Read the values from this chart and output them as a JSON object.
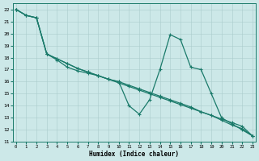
{
  "xlabel": "Humidex (Indice chaleur)",
  "bg_color": "#cce8e8",
  "grid_color": "#aacccc",
  "line_color": "#1a7a6a",
  "xlim": [
    -0.3,
    23.3
  ],
  "ylim": [
    11,
    22.5
  ],
  "yticks": [
    11,
    12,
    13,
    14,
    15,
    16,
    17,
    18,
    19,
    20,
    21,
    22
  ],
  "xticks": [
    0,
    1,
    2,
    3,
    4,
    5,
    6,
    7,
    8,
    9,
    10,
    11,
    12,
    13,
    14,
    15,
    16,
    17,
    18,
    19,
    20,
    21,
    22,
    23
  ],
  "line1_x": [
    0,
    1,
    2,
    3,
    4,
    5,
    6,
    7,
    8,
    9,
    10,
    11,
    12,
    13,
    14,
    15,
    16,
    17,
    18,
    19,
    20,
    21,
    22,
    23
  ],
  "line1_y": [
    22.0,
    21.5,
    21.3,
    18.3,
    17.9,
    17.5,
    17.1,
    16.8,
    16.5,
    16.2,
    15.9,
    15.6,
    15.3,
    15.0,
    14.7,
    14.4,
    14.1,
    13.8,
    13.5,
    13.2,
    12.9,
    12.6,
    12.3,
    11.5
  ],
  "line2_x": [
    0,
    1,
    2,
    3,
    4,
    5,
    6,
    7,
    8,
    9,
    10,
    11,
    12,
    13,
    14,
    15,
    16,
    17,
    18,
    19,
    20,
    21,
    22,
    23
  ],
  "line2_y": [
    22.0,
    21.5,
    21.3,
    18.3,
    17.9,
    17.5,
    17.1,
    16.8,
    16.5,
    16.2,
    16.0,
    15.7,
    15.4,
    15.1,
    14.8,
    14.5,
    14.2,
    13.9,
    13.5,
    13.2,
    12.8,
    12.4,
    12.1,
    11.5
  ],
  "line3_x": [
    0,
    1,
    2,
    3,
    4,
    5,
    6,
    7,
    8,
    9,
    10,
    11,
    12,
    13,
    14,
    15,
    16,
    17,
    18,
    19,
    20,
    21,
    22,
    23
  ],
  "line3_y": [
    22.0,
    21.5,
    21.3,
    18.3,
    17.8,
    17.2,
    16.9,
    16.7,
    16.5,
    16.2,
    16.0,
    14.0,
    13.3,
    14.5,
    17.0,
    19.9,
    19.5,
    17.2,
    17.0,
    15.0,
    13.0,
    12.5,
    12.0,
    11.5
  ]
}
